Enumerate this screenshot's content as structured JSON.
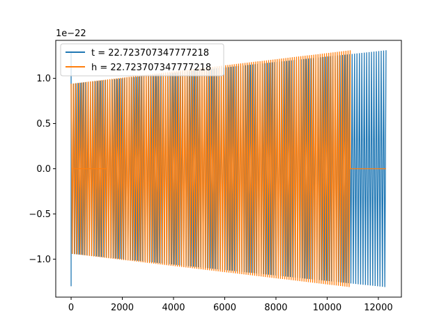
{
  "chart_data": {
    "type": "line",
    "title": "",
    "xlabel": "",
    "ylabel": "",
    "y_offset_label": "1e−22",
    "xlim": [
      -600,
      12900
    ],
    "ylim": [
      -1.42,
      1.42
    ],
    "x_ticks": [
      0,
      2000,
      4000,
      6000,
      8000,
      10000,
      12000
    ],
    "x_tick_labels": [
      "0",
      "2000",
      "4000",
      "6000",
      "8000",
      "10000",
      "12000"
    ],
    "y_ticks": [
      -1.0,
      -0.5,
      0.0,
      0.5,
      1.0
    ],
    "y_tick_labels": [
      "−1.0",
      "−0.5",
      "0.0",
      "0.5",
      "1.0"
    ],
    "grid": false,
    "legend_position": "upper-left",
    "series": [
      {
        "name": "t = 22.723707347777218",
        "color": "#1f77b4",
        "signal": "oscillating chirp, amplitude rising from 0.94 to 1.31 (×1e−22), spike to ±1.3 at x≈0",
        "x_start": 0,
        "x_end": 12300,
        "amp_start": 0.94,
        "amp_end": 1.31
      },
      {
        "name": "h = 22.723707347777218",
        "color": "#ff7f0e",
        "signal": "oscillating chirp ending at x≈10900, then flat at 0 up to x≈12300",
        "x_start": 0,
        "x_end": 10900,
        "flat_end": 12300,
        "amp_start": 0.94,
        "amp_end": 1.31
      }
    ]
  }
}
